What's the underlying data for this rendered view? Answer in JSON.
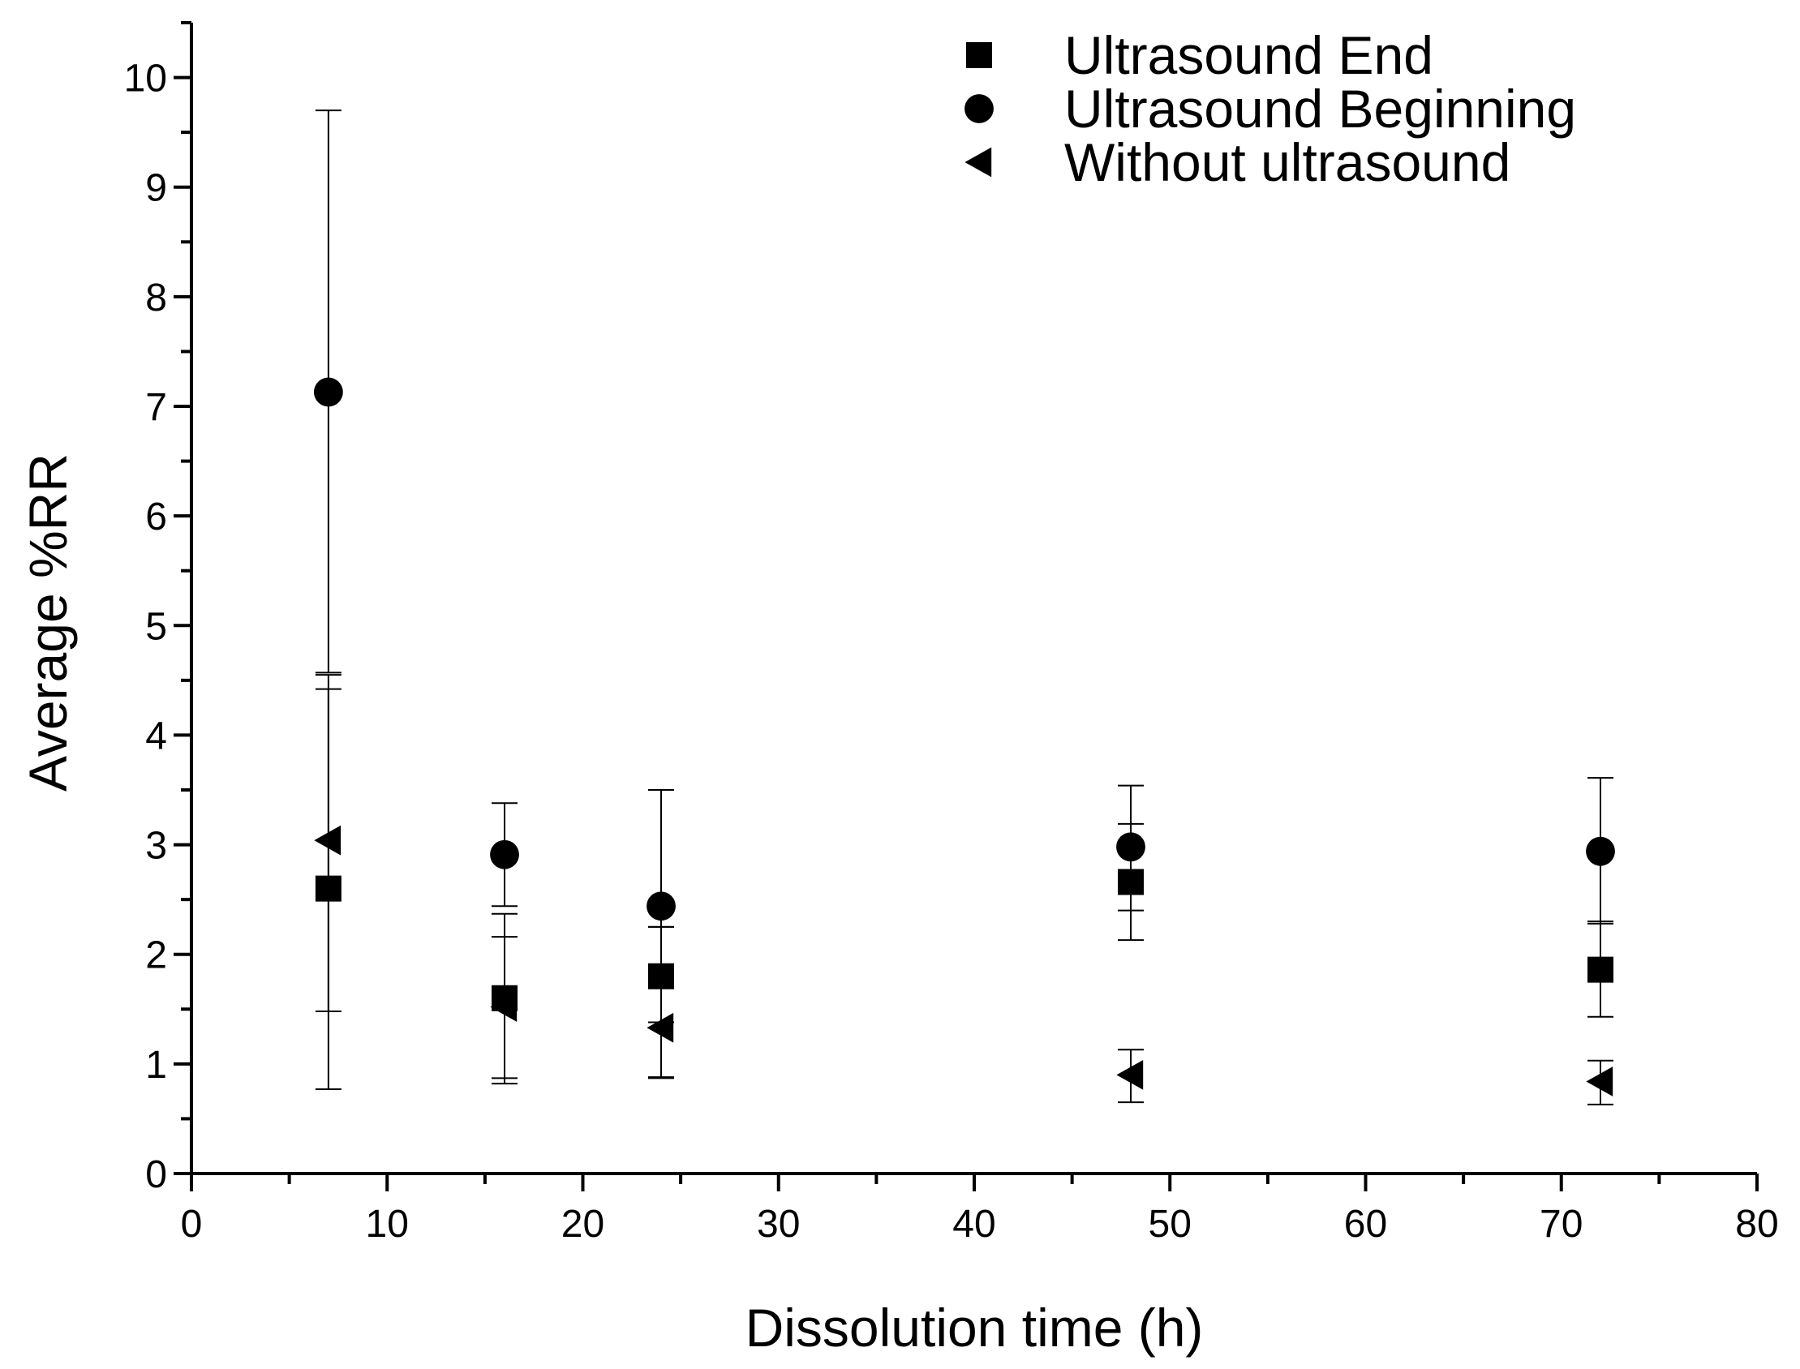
{
  "chart_data": {
    "type": "scatter",
    "title": "",
    "xlabel": "Dissolution time (h)",
    "ylabel": "Average %RR",
    "xlim": [
      0,
      80
    ],
    "ylim": [
      0,
      10.5
    ],
    "xticks": [
      0,
      10,
      20,
      30,
      40,
      50,
      60,
      70,
      80
    ],
    "xtick_labels": [
      "0",
      "10",
      "20",
      "30",
      "40",
      "50",
      "60",
      "70",
      "80"
    ],
    "yticks": [
      0,
      1,
      2,
      3,
      4,
      5,
      6,
      7,
      8,
      9,
      10
    ],
    "ytick_labels": [
      "0",
      "1",
      "2",
      "3",
      "4",
      "5",
      "6",
      "7",
      "8",
      "9",
      "10"
    ],
    "grid": false,
    "legend_position": "top-right",
    "series": [
      {
        "name": "Ultrasound End",
        "marker": "square",
        "color": "#000000",
        "x": [
          7,
          16,
          24,
          48,
          72
        ],
        "y": [
          2.6,
          1.6,
          1.8,
          2.66,
          1.86
        ],
        "yerr_low": [
          0.77,
          0.87,
          0.87,
          2.13,
          1.43
        ],
        "yerr_high": [
          4.42,
          2.37,
          2.25,
          3.19,
          2.3
        ]
      },
      {
        "name": "Ultrasound Beginning",
        "marker": "circle",
        "color": "#000000",
        "x": [
          7,
          16,
          24,
          48,
          72
        ],
        "y": [
          7.13,
          2.91,
          2.44,
          2.98,
          2.94
        ],
        "yerr_low": [
          4.57,
          2.44,
          1.38,
          2.4,
          2.28
        ],
        "yerr_high": [
          9.7,
          3.38,
          3.5,
          3.54,
          3.61
        ]
      },
      {
        "name": "Without ultrasound",
        "marker": "triangle-left",
        "color": "#000000",
        "x": [
          7,
          16,
          24,
          48,
          72
        ],
        "y": [
          3.04,
          1.52,
          1.33,
          0.9,
          0.84
        ],
        "yerr_low": [
          1.48,
          0.82,
          0.88,
          0.65,
          0.63
        ],
        "yerr_high": [
          4.55,
          2.16,
          2.25,
          1.13,
          1.03
        ]
      }
    ]
  }
}
